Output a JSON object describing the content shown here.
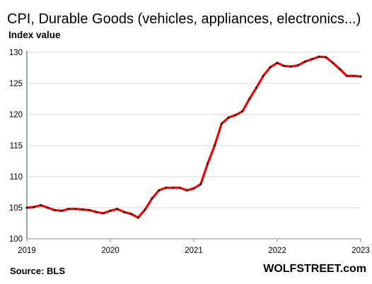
{
  "title": "CPI, Durable Goods (vehicles, appliances, electronics...)",
  "subtitle": "Index value",
  "source": "Source: BLS",
  "brand": "WOLFSTREET.com",
  "colors": {
    "line": "#ee0000",
    "marker": "#111111",
    "axis": "#2e8b57",
    "grid": "#d9d9d9"
  },
  "chart_data": {
    "type": "line",
    "title": "CPI, Durable Goods (vehicles, appliances, electronics...)",
    "ylabel": "Index value",
    "xlabel": "",
    "ylim": [
      100,
      130
    ],
    "xlim": [
      "2019-01",
      "2023-01"
    ],
    "grid": true,
    "y_ticks": [
      "100",
      "105",
      "110",
      "115",
      "120",
      "125",
      "130"
    ],
    "x_ticks": [
      "2019",
      "2020",
      "2021",
      "2022",
      "2023"
    ],
    "series": [
      {
        "x": [
          "2019-01",
          "2019-02",
          "2019-03",
          "2019-04",
          "2019-05",
          "2019-06",
          "2019-07",
          "2019-08",
          "2019-09",
          "2019-10",
          "2019-11",
          "2019-12",
          "2020-01",
          "2020-02",
          "2020-03",
          "2020-04",
          "2020-05",
          "2020-06",
          "2020-07",
          "2020-08",
          "2020-09",
          "2020-10",
          "2020-11",
          "2020-12",
          "2021-01",
          "2021-02",
          "2021-03",
          "2021-04",
          "2021-05",
          "2021-06",
          "2021-07",
          "2021-08",
          "2021-09",
          "2021-10",
          "2021-11",
          "2021-12",
          "2022-01",
          "2022-02",
          "2022-03",
          "2022-04",
          "2022-05",
          "2022-06",
          "2022-07",
          "2022-08",
          "2022-09",
          "2022-10",
          "2022-11",
          "2022-12",
          "2023-01"
        ],
        "values": [
          105.0,
          105.1,
          105.4,
          105.0,
          104.6,
          104.5,
          104.8,
          104.8,
          104.7,
          104.6,
          104.3,
          104.1,
          104.5,
          104.8,
          104.3,
          104.0,
          103.4,
          104.7,
          106.5,
          107.8,
          108.2,
          108.2,
          108.2,
          107.8,
          108.1,
          108.8,
          112.1,
          115.0,
          118.5,
          119.5,
          119.9,
          120.5,
          122.5,
          124.3,
          126.2,
          127.6,
          128.3,
          127.8,
          127.7,
          127.9,
          128.5,
          128.9,
          129.3,
          129.2,
          128.3,
          127.3,
          126.2,
          126.2,
          126.1
        ]
      }
    ]
  }
}
